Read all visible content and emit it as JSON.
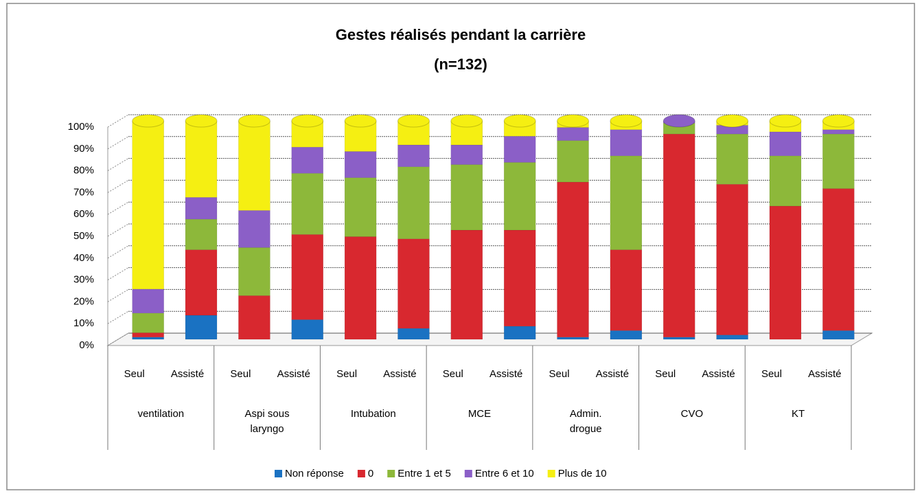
{
  "chart_data": {
    "type": "stacked_bar",
    "title": "Gestes réalisés pendant la carrière",
    "subtitle": "(n=132)",
    "categories": [
      "Seul",
      "Assisté",
      "Seul",
      "Assisté",
      "Seul",
      "Assisté",
      "Seul",
      "Assisté",
      "Seul",
      "Assisté",
      "Seul",
      "Assisté",
      "Seul",
      "Assisté"
    ],
    "groups": [
      "ventilation",
      "Aspi sous laryngo",
      "Intubation",
      "MCE",
      "Admin. drogue",
      "CVO",
      "KT"
    ],
    "series": [
      {
        "name": "Non réponse",
        "color": "#1a72c2",
        "values": [
          1,
          11,
          0,
          9,
          0,
          5,
          0,
          6,
          1,
          4,
          1,
          2,
          0,
          4
        ]
      },
      {
        "name": "0",
        "color": "#d8282f",
        "values": [
          2,
          30,
          20,
          39,
          47,
          41,
          50,
          44,
          71,
          37,
          93,
          69,
          61,
          65
        ]
      },
      {
        "name": "Entre 1 et 5",
        "color": "#8db83a",
        "values": [
          9,
          14,
          22,
          28,
          27,
          33,
          30,
          31,
          19,
          43,
          5,
          23,
          23,
          25
        ]
      },
      {
        "name": "Entre 6 et 10",
        "color": "#8b5fc7",
        "values": [
          11,
          10,
          17,
          12,
          12,
          10,
          9,
          12,
          6,
          12,
          1,
          4,
          11,
          2
        ]
      },
      {
        "name": "Plus de 10",
        "color": "#f5ef12",
        "values": [
          77,
          35,
          41,
          12,
          14,
          11,
          11,
          7,
          3,
          4,
          0,
          2,
          5,
          4
        ]
      }
    ],
    "ylim": [
      0,
      100
    ],
    "yticks": [
      {
        "value": 0,
        "label": "0%"
      },
      {
        "value": 10,
        "label": "10%"
      },
      {
        "value": 20,
        "label": "20%"
      },
      {
        "value": 30,
        "label": "30%"
      },
      {
        "value": 40,
        "label": "40%"
      },
      {
        "value": 50,
        "label": "50%"
      },
      {
        "value": 60,
        "label": "60%"
      },
      {
        "value": 70,
        "label": "70%"
      },
      {
        "value": 80,
        "label": "80%"
      },
      {
        "value": 90,
        "label": "90%"
      },
      {
        "value": 100,
        "label": "100%"
      }
    ],
    "grid": true,
    "legend": "bottom"
  }
}
